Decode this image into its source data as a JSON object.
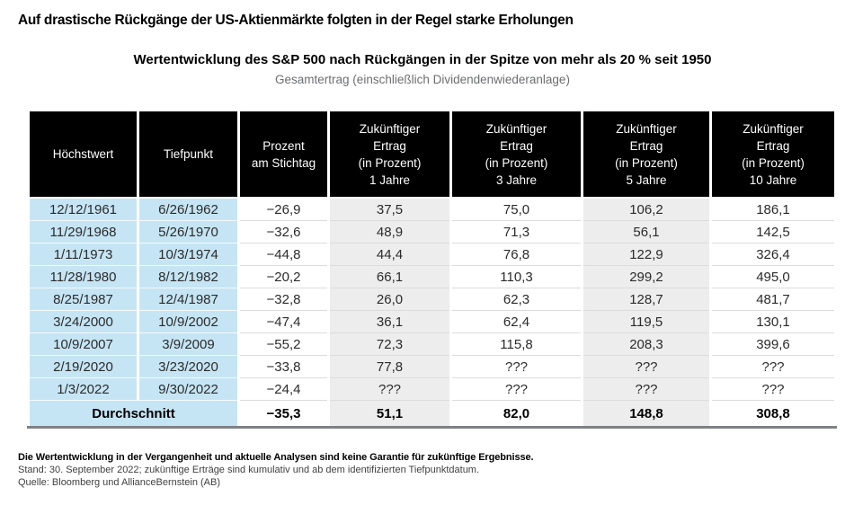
{
  "headline": "Auf drastische Rückgänge der US-Aktienmärkte folgten in der Regel starke Erholungen",
  "chart_data": {
    "type": "table",
    "title": "Wertentwicklung des S&P 500 nach Rückgängen in der Spitze von mehr als 20 % seit 1950",
    "subtitle": "Gesamtertrag (einschließlich Dividendenwiederanlage)",
    "columns": [
      "Höchstwert",
      "Tiefpunkt",
      "Prozent\nam Stichtag",
      "Zukünftiger\nErtrag\n(in Prozent)\n1 Jahre",
      "Zukünftiger\nErtrag\n(in Prozent)\n3 Jahre",
      "Zukünftiger\nErtrag\n(in Prozent)\n5 Jahre",
      "Zukünftiger\nErtrag\n(in Prozent)\n10 Jahre"
    ],
    "rows": [
      [
        "12/12/1961",
        "6/26/1962",
        "−26,9",
        "37,5",
        "75,0",
        "106,2",
        "186,1"
      ],
      [
        "11/29/1968",
        "5/26/1970",
        "−32,6",
        "48,9",
        "71,3",
        "56,1",
        "142,5"
      ],
      [
        "1/11/1973",
        "10/3/1974",
        "−44,8",
        "44,4",
        "76,8",
        "122,9",
        "326,4"
      ],
      [
        "11/28/1980",
        "8/12/1982",
        "−20,2",
        "66,1",
        "110,3",
        "299,2",
        "495,0"
      ],
      [
        "8/25/1987",
        "12/4/1987",
        "−32,8",
        "26,0",
        "62,3",
        "128,7",
        "481,7"
      ],
      [
        "3/24/2000",
        "10/9/2002",
        "−47,4",
        "36,1",
        "62,4",
        "119,5",
        "130,1"
      ],
      [
        "10/9/2007",
        "3/9/2009",
        "−55,2",
        "72,3",
        "115,8",
        "208,3",
        "399,6"
      ],
      [
        "2/19/2020",
        "3/23/2020",
        "−33,8",
        "77,8",
        "???",
        "???",
        "???"
      ],
      [
        "1/3/2022",
        "9/30/2022",
        "−24,4",
        "???",
        "???",
        "???",
        "???"
      ]
    ],
    "average_row": {
      "label": "Durchschnitt",
      "values": [
        "−35,3",
        "51,1",
        "82,0",
        "148,8",
        "308,8"
      ]
    }
  },
  "footnotes": {
    "disclaimer": "Die Wertentwicklung in der Vergangenheit und aktuelle Analysen sind keine Garantie für zukünftige Ergebnisse.",
    "as_of": "Stand: 30. September 2022; zukünftige Erträge sind kumulativ und ab dem identifizierten Tiefpunktdatum.",
    "source": "Quelle: Bloomberg und AllianceBernstein (AB)"
  },
  "colors": {
    "header_bg": "#000000",
    "header_text": "#ffffff",
    "date_column_bg": "#c6e5f4",
    "alt_column_bg": "#ededed",
    "bottom_border": "#808184",
    "subtitle_text": "#6d6e71"
  }
}
